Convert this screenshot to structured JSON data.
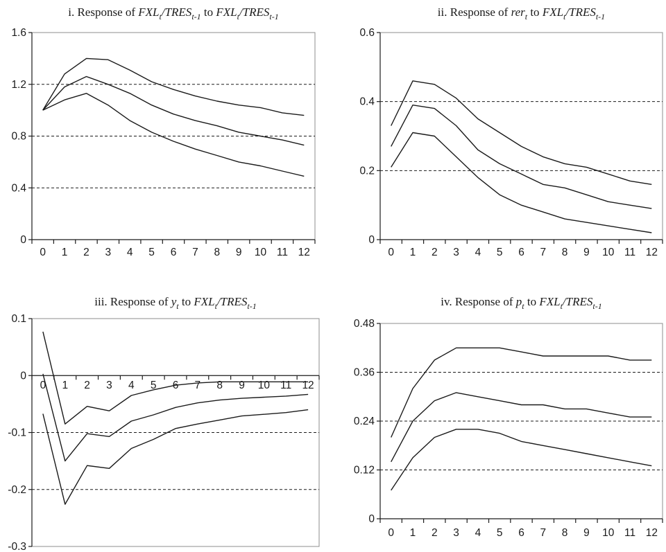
{
  "chart_data": [
    {
      "type": "line",
      "title": {
        "segments": [
          {
            "text": "i. Response of ",
            "italic": false
          },
          {
            "text": "FXL",
            "italic": true
          },
          {
            "text": "t",
            "italic": true,
            "sub": true
          },
          {
            "text": "/TRES",
            "italic": true
          },
          {
            "text": "t-1",
            "italic": true,
            "sub": true
          },
          {
            "text": " to ",
            "italic": false
          },
          {
            "text": "FXL",
            "italic": true
          },
          {
            "text": "t",
            "italic": true,
            "sub": true
          },
          {
            "text": "/TRES",
            "italic": true
          },
          {
            "text": "t-1",
            "italic": true,
            "sub": true
          }
        ]
      },
      "x": [
        0,
        1,
        2,
        3,
        4,
        5,
        6,
        7,
        8,
        9,
        10,
        11,
        12
      ],
      "x_tick_labels": [
        "0",
        "1",
        "2",
        "3",
        "4",
        "5",
        "6",
        "7",
        "8",
        "9",
        "10",
        "11",
        "12"
      ],
      "ylim": [
        0,
        1.6
      ],
      "y_ticks": [
        0,
        0.4,
        0.8,
        1.2,
        1.6
      ],
      "y_tick_labels": [
        "0",
        "0.4",
        "0.8",
        "1.2",
        "1.6"
      ],
      "grid_y": [
        0.4,
        0.8,
        1.2
      ],
      "series": [
        {
          "values": [
            1.0,
            1.28,
            1.4,
            1.39,
            1.31,
            1.22,
            1.16,
            1.11,
            1.07,
            1.04,
            1.02,
            0.98,
            0.96
          ]
        },
        {
          "values": [
            1.0,
            1.18,
            1.26,
            1.2,
            1.13,
            1.04,
            0.97,
            0.92,
            0.88,
            0.83,
            0.8,
            0.77,
            0.73
          ]
        },
        {
          "values": [
            1.0,
            1.08,
            1.13,
            1.04,
            0.92,
            0.83,
            0.76,
            0.7,
            0.65,
            0.6,
            0.57,
            0.53,
            0.49
          ]
        }
      ]
    },
    {
      "type": "line",
      "title": {
        "segments": [
          {
            "text": "ii. Response of ",
            "italic": false
          },
          {
            "text": "rer",
            "italic": true
          },
          {
            "text": "t",
            "italic": true,
            "sub": true
          },
          {
            "text": " to ",
            "italic": false
          },
          {
            "text": "FXL",
            "italic": true
          },
          {
            "text": "t",
            "italic": true,
            "sub": true
          },
          {
            "text": "/TRES",
            "italic": true
          },
          {
            "text": "t-1",
            "italic": true,
            "sub": true
          }
        ]
      },
      "x": [
        0,
        1,
        2,
        3,
        4,
        5,
        6,
        7,
        8,
        9,
        10,
        11,
        12
      ],
      "x_tick_labels": [
        "0",
        "1",
        "2",
        "3",
        "4",
        "5",
        "6",
        "7",
        "8",
        "9",
        "10",
        "11",
        "12"
      ],
      "ylim": [
        0,
        0.6
      ],
      "y_ticks": [
        0,
        0.2,
        0.4,
        0.6
      ],
      "y_tick_labels": [
        "0",
        "0.2",
        "0.4",
        "0.6"
      ],
      "grid_y": [
        0.2,
        0.4
      ],
      "series": [
        {
          "values": [
            0.33,
            0.46,
            0.45,
            0.41,
            0.35,
            0.31,
            0.27,
            0.24,
            0.22,
            0.21,
            0.19,
            0.17,
            0.16
          ]
        },
        {
          "values": [
            0.27,
            0.39,
            0.38,
            0.33,
            0.26,
            0.22,
            0.19,
            0.16,
            0.15,
            0.13,
            0.11,
            0.1,
            0.09
          ]
        },
        {
          "values": [
            0.21,
            0.31,
            0.3,
            0.24,
            0.18,
            0.13,
            0.1,
            0.08,
            0.06,
            0.05,
            0.04,
            0.03,
            0.02
          ]
        }
      ]
    },
    {
      "type": "line",
      "title": {
        "segments": [
          {
            "text": "iii. Response of ",
            "italic": false
          },
          {
            "text": "y",
            "italic": true
          },
          {
            "text": "t",
            "italic": true,
            "sub": true
          },
          {
            "text": " to ",
            "italic": false
          },
          {
            "text": "FXL",
            "italic": true
          },
          {
            "text": "t",
            "italic": true,
            "sub": true
          },
          {
            "text": "/TRES",
            "italic": true
          },
          {
            "text": "t-1",
            "italic": true,
            "sub": true
          }
        ]
      },
      "x": [
        0,
        1,
        2,
        3,
        4,
        5,
        6,
        7,
        8,
        9,
        10,
        11,
        12
      ],
      "x_tick_labels": [
        "0",
        "1",
        "2",
        "3",
        "4",
        "5",
        "6",
        "7",
        "8",
        "9",
        "10",
        "11",
        "12"
      ],
      "x_axis_at": 0,
      "ylim": [
        -0.3,
        0.1
      ],
      "y_ticks": [
        -0.3,
        -0.2,
        -0.1,
        0,
        0.1
      ],
      "y_tick_labels": [
        "-0.3",
        "-0.2",
        "-0.1",
        "0",
        "0.1"
      ],
      "grid_y": [
        -0.2,
        -0.1
      ],
      "series": [
        {
          "values": [
            0.077,
            -0.085,
            -0.054,
            -0.062,
            -0.035,
            -0.025,
            -0.017,
            -0.013,
            -0.011,
            -0.011,
            -0.011,
            -0.011,
            -0.011
          ]
        },
        {
          "values": [
            0.003,
            -0.15,
            -0.102,
            -0.107,
            -0.08,
            -0.069,
            -0.056,
            -0.048,
            -0.043,
            -0.04,
            -0.038,
            -0.036,
            -0.033
          ]
        },
        {
          "values": [
            -0.067,
            -0.226,
            -0.158,
            -0.163,
            -0.128,
            -0.112,
            -0.093,
            -0.085,
            -0.078,
            -0.071,
            -0.068,
            -0.065,
            -0.06
          ]
        }
      ]
    },
    {
      "type": "line",
      "title": {
        "segments": [
          {
            "text": "iv. Response of ",
            "italic": false
          },
          {
            "text": "p",
            "italic": true
          },
          {
            "text": "t",
            "italic": true,
            "sub": true
          },
          {
            "text": " to ",
            "italic": false
          },
          {
            "text": "FXL",
            "italic": true
          },
          {
            "text": "t",
            "italic": true,
            "sub": true
          },
          {
            "text": "/TRES",
            "italic": true
          },
          {
            "text": "t-1",
            "italic": true,
            "sub": true
          }
        ]
      },
      "x": [
        0,
        1,
        2,
        3,
        4,
        5,
        6,
        7,
        8,
        9,
        10,
        11,
        12
      ],
      "x_tick_labels": [
        "0",
        "1",
        "2",
        "3",
        "4",
        "5",
        "6",
        "7",
        "8",
        "9",
        "10",
        "11",
        "12"
      ],
      "ylim": [
        0,
        0.48
      ],
      "y_ticks": [
        0,
        0.12,
        0.24,
        0.36,
        0.48
      ],
      "y_tick_labels": [
        "0",
        "0.12",
        "0.24",
        "0.36",
        "0.48"
      ],
      "grid_y": [
        0.12,
        0.24,
        0.36
      ],
      "series": [
        {
          "values": [
            0.2,
            0.32,
            0.39,
            0.42,
            0.42,
            0.42,
            0.41,
            0.4,
            0.4,
            0.4,
            0.4,
            0.39,
            0.39
          ]
        },
        {
          "values": [
            0.14,
            0.24,
            0.29,
            0.31,
            0.3,
            0.29,
            0.28,
            0.28,
            0.27,
            0.27,
            0.26,
            0.25,
            0.25
          ]
        },
        {
          "values": [
            0.07,
            0.15,
            0.2,
            0.22,
            0.22,
            0.21,
            0.19,
            0.18,
            0.17,
            0.16,
            0.15,
            0.14,
            0.13
          ]
        }
      ]
    }
  ]
}
